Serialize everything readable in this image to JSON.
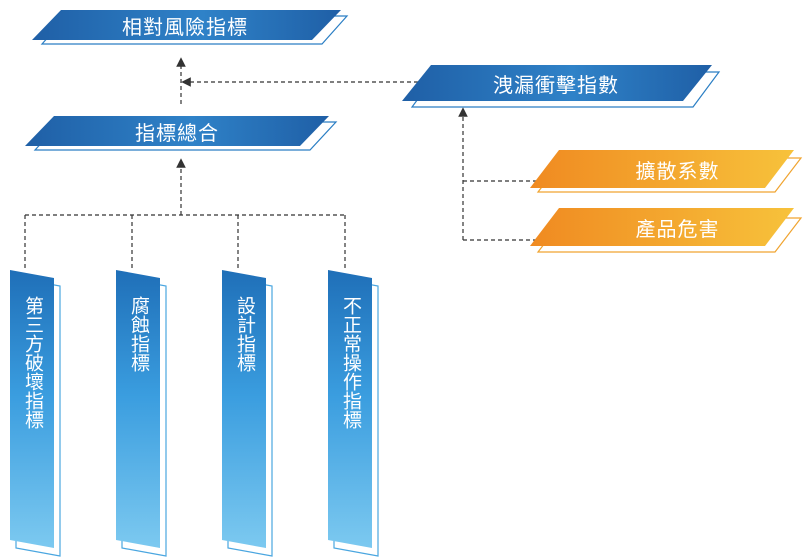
{
  "colors": {
    "blue_dark": "#1f5fa6",
    "blue_mid": "#2f8fd2",
    "blue_light": "#6cc2ee",
    "orange_dark": "#f08a21",
    "orange_light": "#f7c23b",
    "connector": "#333333"
  },
  "nodes": {
    "relative_risk": "相對風險指標",
    "index_sum": "指標總合",
    "leak_impact": "洩漏衝擊指數",
    "dispersion": "擴散系數",
    "product_hazard": "產品危害",
    "third_party": "第三方破壞指標",
    "corrosion": "腐蝕指標",
    "design": "設計指標",
    "incorrect_operation": "不正常操作指標"
  }
}
